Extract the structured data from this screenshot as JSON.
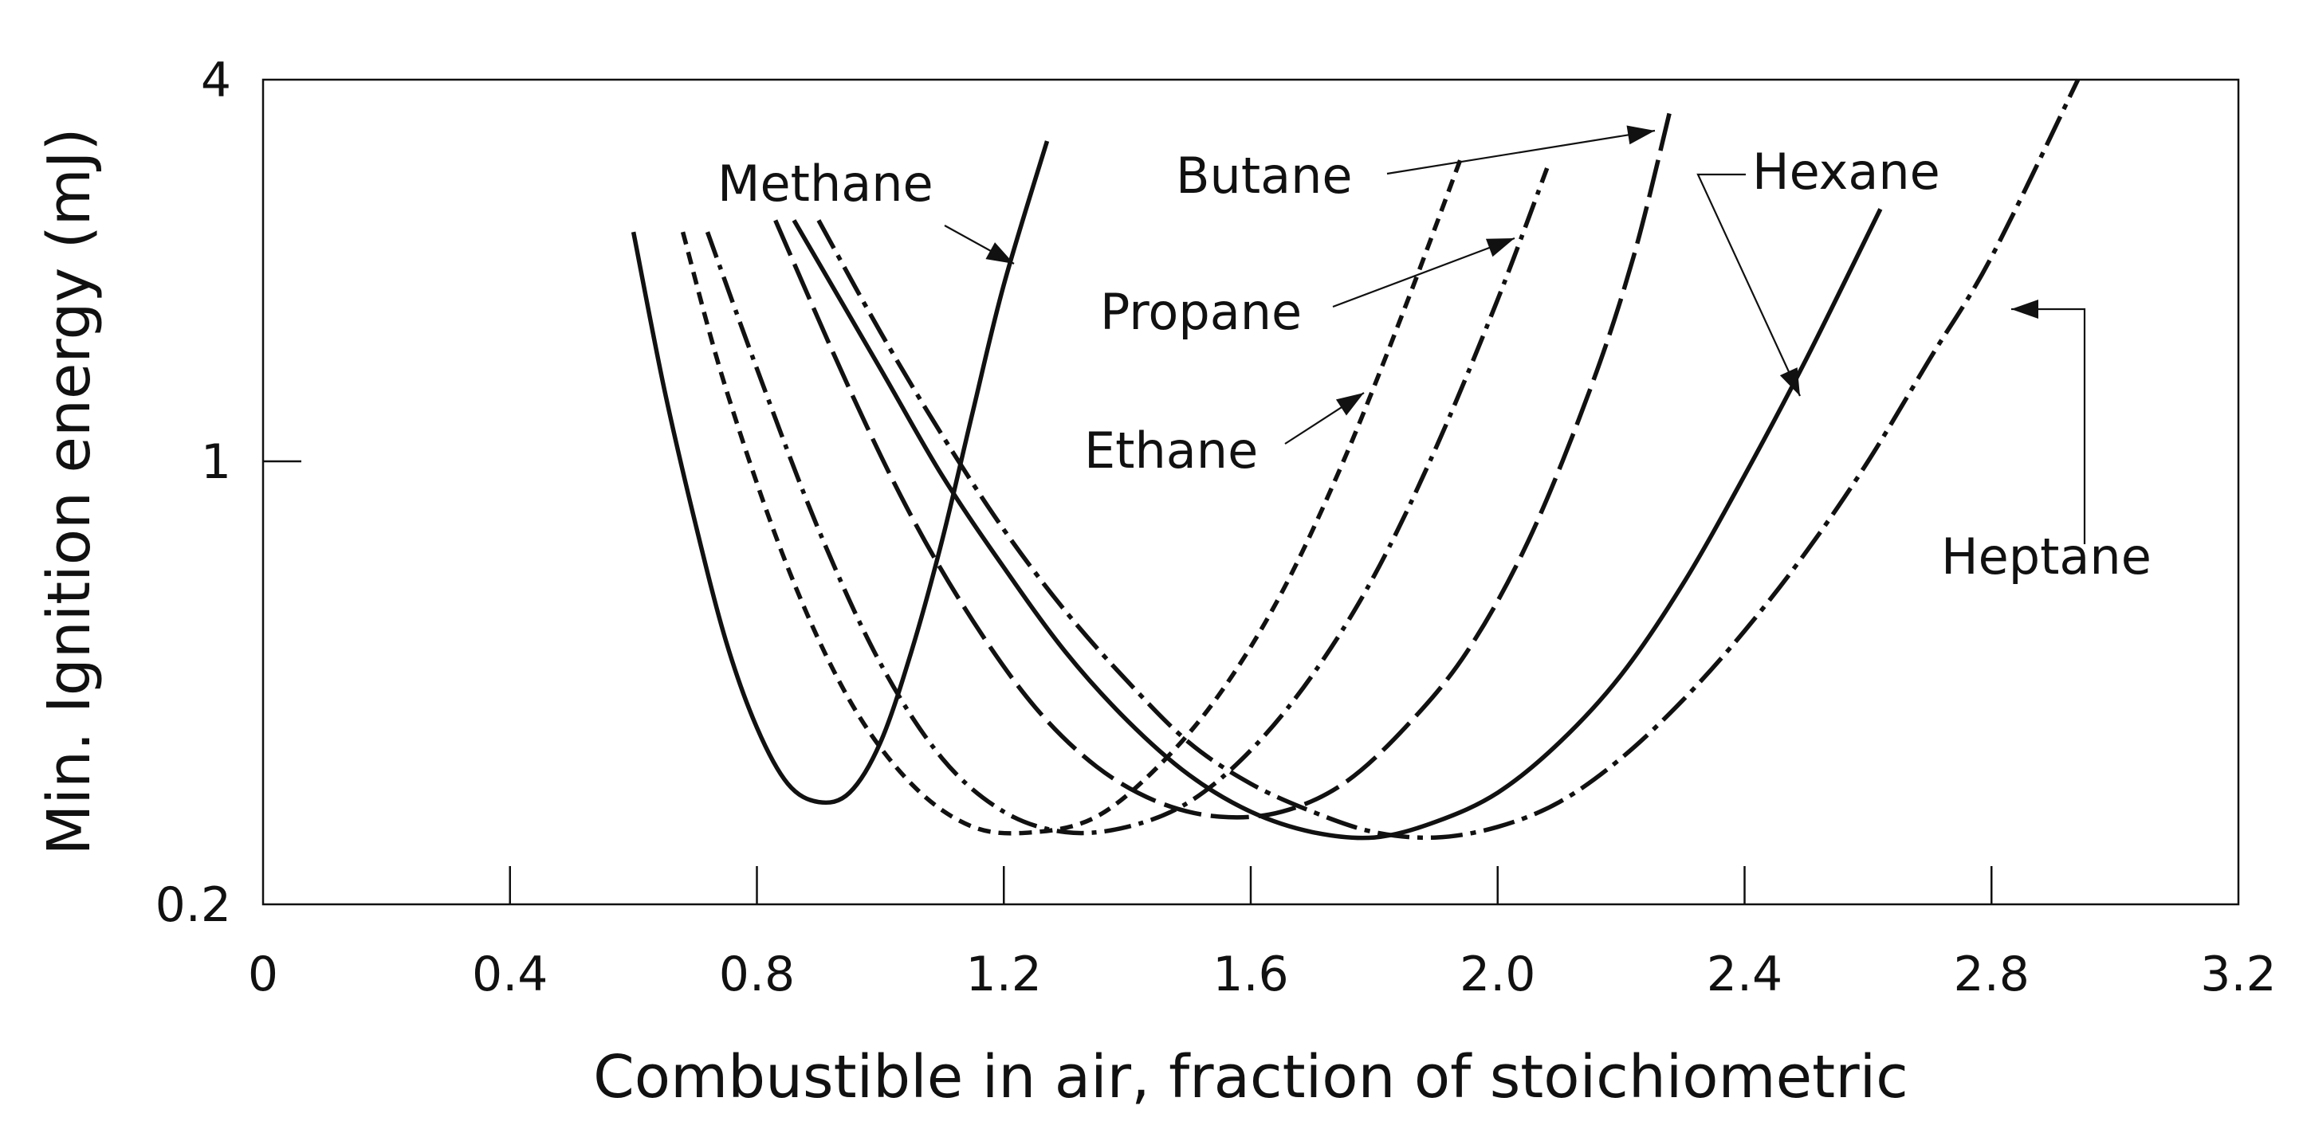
{
  "chart_data": {
    "type": "line",
    "xlabel": "Combustible in air, fraction of stoichiometric",
    "ylabel": "Min. Ignition energy (mJ)",
    "xlim": [
      0,
      3.2
    ],
    "ylim": [
      0.2,
      4
    ],
    "yscale": "log",
    "x_ticks": [
      0,
      0.4,
      0.8,
      1.2,
      1.6,
      2.0,
      2.4,
      2.8,
      3.2
    ],
    "x_tick_labels": [
      "0",
      "0.4",
      "0.8",
      "1.2",
      "1.6",
      "2.0",
      "2.4",
      "2.8",
      "3.2"
    ],
    "y_ticks": [
      0.2,
      1,
      4
    ],
    "y_tick_labels": [
      "0.2",
      "1",
      "4"
    ],
    "grid": false,
    "series": [
      {
        "name": "Methane",
        "dash": "solid",
        "x": [
          0.6,
          0.65,
          0.7,
          0.75,
          0.8,
          0.85,
          0.9,
          0.95,
          1.0,
          1.05,
          1.1,
          1.15,
          1.2,
          1.27
        ],
        "y": [
          2.3,
          1.3,
          0.8,
          0.52,
          0.38,
          0.31,
          0.29,
          0.3,
          0.36,
          0.5,
          0.75,
          1.2,
          1.9,
          3.2
        ]
      },
      {
        "name": "Ethane",
        "dash": "16,10",
        "x": [
          0.68,
          0.75,
          0.85,
          0.95,
          1.05,
          1.15,
          1.25,
          1.35,
          1.45,
          1.55,
          1.65,
          1.75,
          1.85,
          1.94
        ],
        "y": [
          2.3,
          1.3,
          0.68,
          0.42,
          0.31,
          0.265,
          0.26,
          0.275,
          0.33,
          0.43,
          0.62,
          1.0,
          1.75,
          3.0
        ]
      },
      {
        "name": "Propane",
        "dash": "34,10,6,10",
        "x": [
          0.72,
          0.8,
          0.9,
          1.0,
          1.1,
          1.2,
          1.3,
          1.4,
          1.5,
          1.6,
          1.7,
          1.8,
          1.9,
          2.0,
          2.08
        ],
        "y": [
          2.3,
          1.4,
          0.78,
          0.48,
          0.34,
          0.28,
          0.26,
          0.265,
          0.29,
          0.35,
          0.46,
          0.66,
          1.05,
          1.8,
          2.9
        ]
      },
      {
        "name": "Butane",
        "dash": "48,12",
        "x": [
          0.83,
          0.95,
          1.05,
          1.15,
          1.25,
          1.35,
          1.45,
          1.55,
          1.65,
          1.75,
          1.85,
          1.95,
          2.05,
          2.15,
          2.22,
          2.28
        ],
        "y": [
          2.4,
          1.3,
          0.82,
          0.56,
          0.41,
          0.33,
          0.29,
          0.275,
          0.28,
          0.31,
          0.38,
          0.5,
          0.75,
          1.3,
          2.1,
          3.6
        ]
      },
      {
        "name": "Hexane",
        "dash": "solid",
        "x": [
          0.86,
          1.0,
          1.1,
          1.2,
          1.3,
          1.4,
          1.5,
          1.6,
          1.7,
          1.8,
          1.9,
          2.0,
          2.1,
          2.2,
          2.3,
          2.4,
          2.5,
          2.62
        ],
        "y": [
          2.4,
          1.4,
          0.95,
          0.68,
          0.5,
          0.39,
          0.32,
          0.28,
          0.26,
          0.255,
          0.27,
          0.3,
          0.36,
          0.46,
          0.64,
          0.95,
          1.45,
          2.5
        ]
      },
      {
        "name": "Heptane",
        "dash": "40,10,7,10",
        "x": [
          0.9,
          1.0,
          1.1,
          1.2,
          1.3,
          1.4,
          1.5,
          1.6,
          1.7,
          1.8,
          1.9,
          2.0,
          2.1,
          2.2,
          2.3,
          2.4,
          2.5,
          2.6,
          2.7,
          2.8,
          2.94
        ],
        "y": [
          2.4,
          1.6,
          1.1,
          0.78,
          0.58,
          0.45,
          0.36,
          0.31,
          0.28,
          0.26,
          0.255,
          0.265,
          0.29,
          0.34,
          0.42,
          0.54,
          0.72,
          1.0,
          1.45,
          2.1,
          4.0
        ]
      }
    ]
  }
}
